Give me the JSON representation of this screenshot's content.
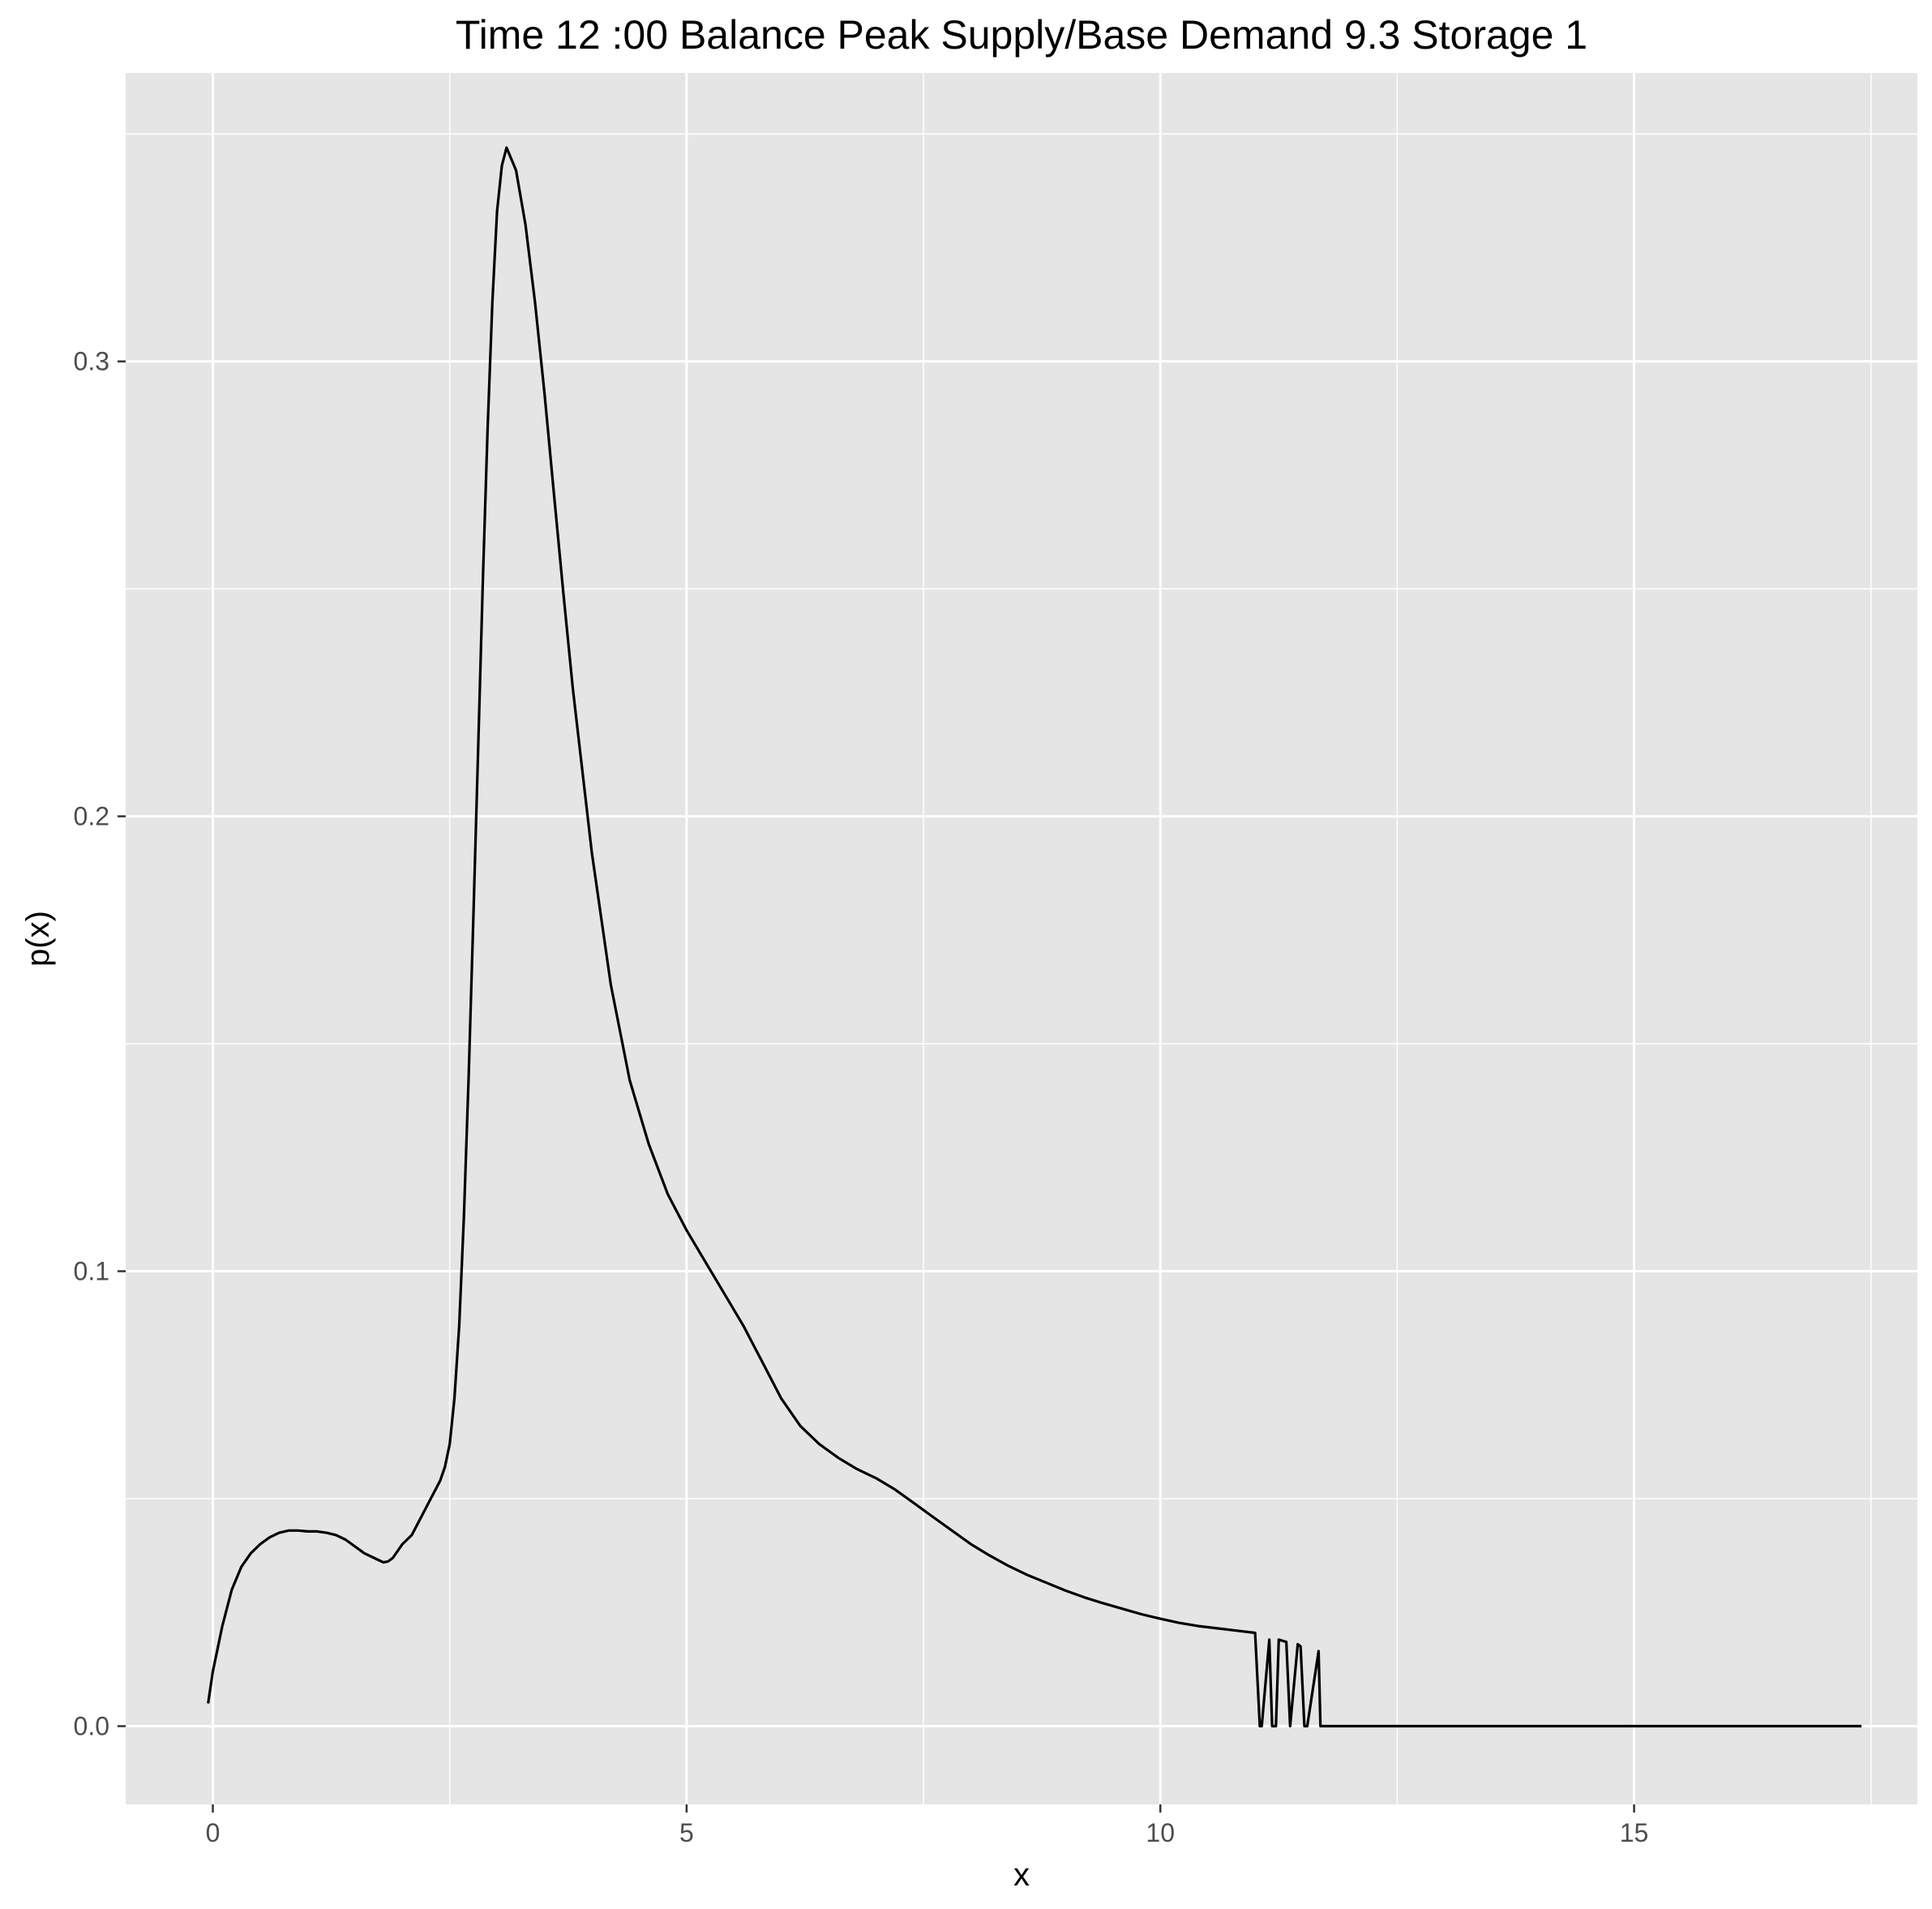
{
  "chart_data": {
    "type": "line",
    "title": "Time  12 :00  Balance   Peak Supply/Base Demand  9.3 Storage 1",
    "xlabel": "x",
    "ylabel": "p(x)",
    "xlim": [
      -0.92,
      17.99
    ],
    "ylim": [
      -0.0172,
      0.3634
    ],
    "x_ticks": [
      0,
      5,
      10,
      15
    ],
    "x_tick_labels": [
      "0",
      "5",
      "10",
      "15"
    ],
    "y_ticks": [
      0.0,
      0.1,
      0.2,
      0.3
    ],
    "y_tick_labels": [
      "0.0",
      "0.1",
      "0.2",
      "0.3"
    ],
    "grid": true,
    "legend": "none",
    "colors": {
      "panel_background": "#e5e5e5",
      "grid_line": "#ffffff",
      "series_line": "#000000",
      "tick_label": "#4d4d4d"
    },
    "series": [
      {
        "x": [
          -0.05,
          0.0,
          0.1,
          0.2,
          0.3,
          0.4,
          0.5,
          0.6,
          0.7,
          0.8,
          0.9,
          1.0,
          1.1,
          1.2,
          1.3,
          1.4,
          1.5,
          1.6,
          1.7,
          1.8,
          1.85,
          1.9,
          2.0,
          2.1,
          2.2,
          2.3,
          2.35,
          2.4,
          2.45,
          2.5,
          2.55,
          2.6,
          2.65,
          2.7,
          2.75,
          2.8,
          2.85,
          2.9,
          2.95,
          3.0,
          3.05,
          3.1,
          3.2,
          3.3,
          3.4,
          3.5,
          3.6,
          3.7,
          3.8,
          4.0,
          4.2,
          4.4,
          4.6,
          4.8,
          5.0,
          5.2,
          5.4,
          5.6,
          5.8,
          6.0,
          6.2,
          6.4,
          6.6,
          6.8,
          7.0,
          7.2,
          7.4,
          7.6,
          7.8,
          8.0,
          8.2,
          8.4,
          8.6,
          8.8,
          9.0,
          9.2,
          9.4,
          9.6,
          9.8,
          10.0,
          10.2,
          10.4,
          10.6,
          10.8,
          11.0,
          11.05,
          11.07,
          11.15,
          11.18,
          11.22,
          11.25,
          11.33,
          11.37,
          11.45,
          11.48,
          11.52,
          11.55,
          11.67,
          11.69,
          11.72,
          11.75,
          11.78,
          12.0,
          13.0,
          14.0,
          15.0,
          16.0,
          17.0,
          17.4
        ],
        "y": [
          0.005,
          0.012,
          0.022,
          0.03,
          0.035,
          0.038,
          0.04,
          0.0415,
          0.0425,
          0.043,
          0.043,
          0.0428,
          0.0428,
          0.0425,
          0.042,
          0.041,
          0.0395,
          0.038,
          0.037,
          0.036,
          0.0362,
          0.037,
          0.04,
          0.042,
          0.046,
          0.05,
          0.052,
          0.054,
          0.057,
          0.062,
          0.072,
          0.088,
          0.112,
          0.143,
          0.178,
          0.215,
          0.252,
          0.285,
          0.313,
          0.333,
          0.343,
          0.347,
          0.342,
          0.33,
          0.313,
          0.293,
          0.271,
          0.249,
          0.228,
          0.192,
          0.163,
          0.142,
          0.128,
          0.117,
          0.109,
          0.102,
          0.095,
          0.088,
          0.08,
          0.072,
          0.066,
          0.062,
          0.059,
          0.0565,
          0.0545,
          0.052,
          0.049,
          0.046,
          0.043,
          0.04,
          0.0375,
          0.0352,
          0.0332,
          0.0315,
          0.0298,
          0.0283,
          0.027,
          0.0258,
          0.0246,
          0.0236,
          0.0227,
          0.022,
          0.0215,
          0.021,
          0.0205,
          0.0,
          0.0,
          0.019,
          0.0,
          0.0,
          0.019,
          0.0185,
          0.0,
          0.018,
          0.0175,
          0.0,
          0.0,
          0.0165,
          0.0,
          0.0,
          0.0,
          0.0,
          0.0,
          0.0,
          0.0,
          0.0,
          0.0,
          0.0,
          0.0
        ]
      }
    ]
  }
}
